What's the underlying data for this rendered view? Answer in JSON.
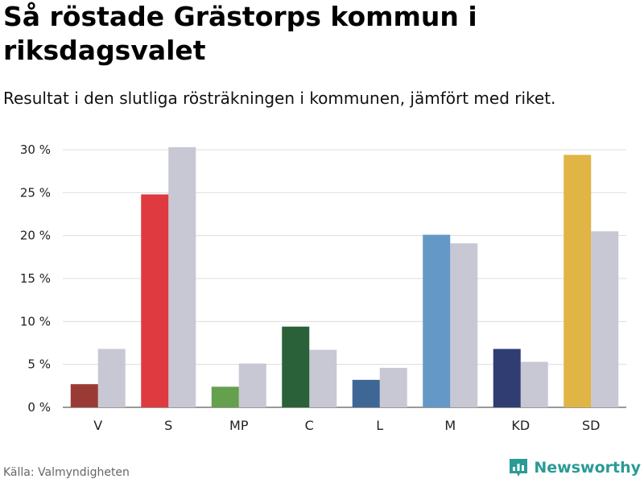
{
  "title": "Så röstade Grästorps kommun i riksdagsvalet",
  "subtitle": "Resultat i den slutliga rösträkningen i kommunen, jämfört med riket.",
  "source": "Källa: Valmyndigheten",
  "brand": {
    "name": "Newsworthy",
    "icon": "newsworthy-logo-icon",
    "color": "#2a9b96"
  },
  "chart_data": {
    "type": "bar",
    "categories": [
      "V",
      "S",
      "MP",
      "C",
      "L",
      "M",
      "KD",
      "SD"
    ],
    "series": [
      {
        "name": "Grästorps kommun",
        "values": [
          2.7,
          24.8,
          2.4,
          9.4,
          3.2,
          20.1,
          6.8,
          29.4
        ],
        "colors": [
          "#9b3a35",
          "#de3a3f",
          "#64a04e",
          "#2a6138",
          "#3f6795",
          "#6498c7",
          "#2f3d72",
          "#e0b445"
        ]
      },
      {
        "name": "Riket",
        "values": [
          6.8,
          30.3,
          5.1,
          6.7,
          4.6,
          19.1,
          5.3,
          20.5
        ],
        "color": "#c8c7d4"
      }
    ],
    "yticks": [
      "0 %",
      "5 %",
      "10 %",
      "15 %",
      "20 %",
      "25 %",
      "30 %"
    ],
    "ylim": [
      0,
      30
    ],
    "xlabel": "",
    "ylabel": "",
    "grid": true
  }
}
